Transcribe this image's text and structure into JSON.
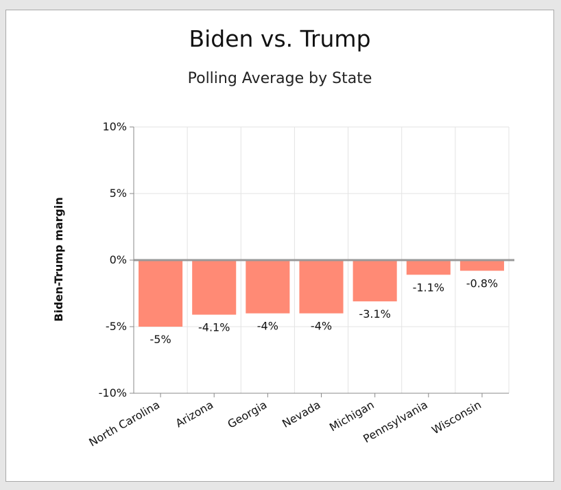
{
  "chart_data": {
    "type": "bar",
    "title": "Biden vs. Trump",
    "subtitle": "Polling Average by State",
    "xlabel": "",
    "ylabel": "Biden-Trump margin",
    "categories": [
      "North Carolina",
      "Arizona",
      "Georgia",
      "Nevada",
      "Michigan",
      "Pennsylvania",
      "Wisconsin"
    ],
    "values": [
      -5,
      -4.1,
      -4,
      -4,
      -3.1,
      -1.1,
      -0.8
    ],
    "data_labels": [
      "-5%",
      "-4.1%",
      "-4%",
      "-4%",
      "-3.1%",
      "-1.1%",
      "-0.8%"
    ],
    "ylim": [
      -10,
      10
    ],
    "yticks": [
      10,
      5,
      0,
      -5,
      -10
    ],
    "ytick_labels": [
      "10%",
      "5%",
      "0%",
      "-5%",
      "-10%"
    ],
    "grid": true,
    "bar_color": "#ff8a75",
    "zero_line_color": "#999999"
  }
}
